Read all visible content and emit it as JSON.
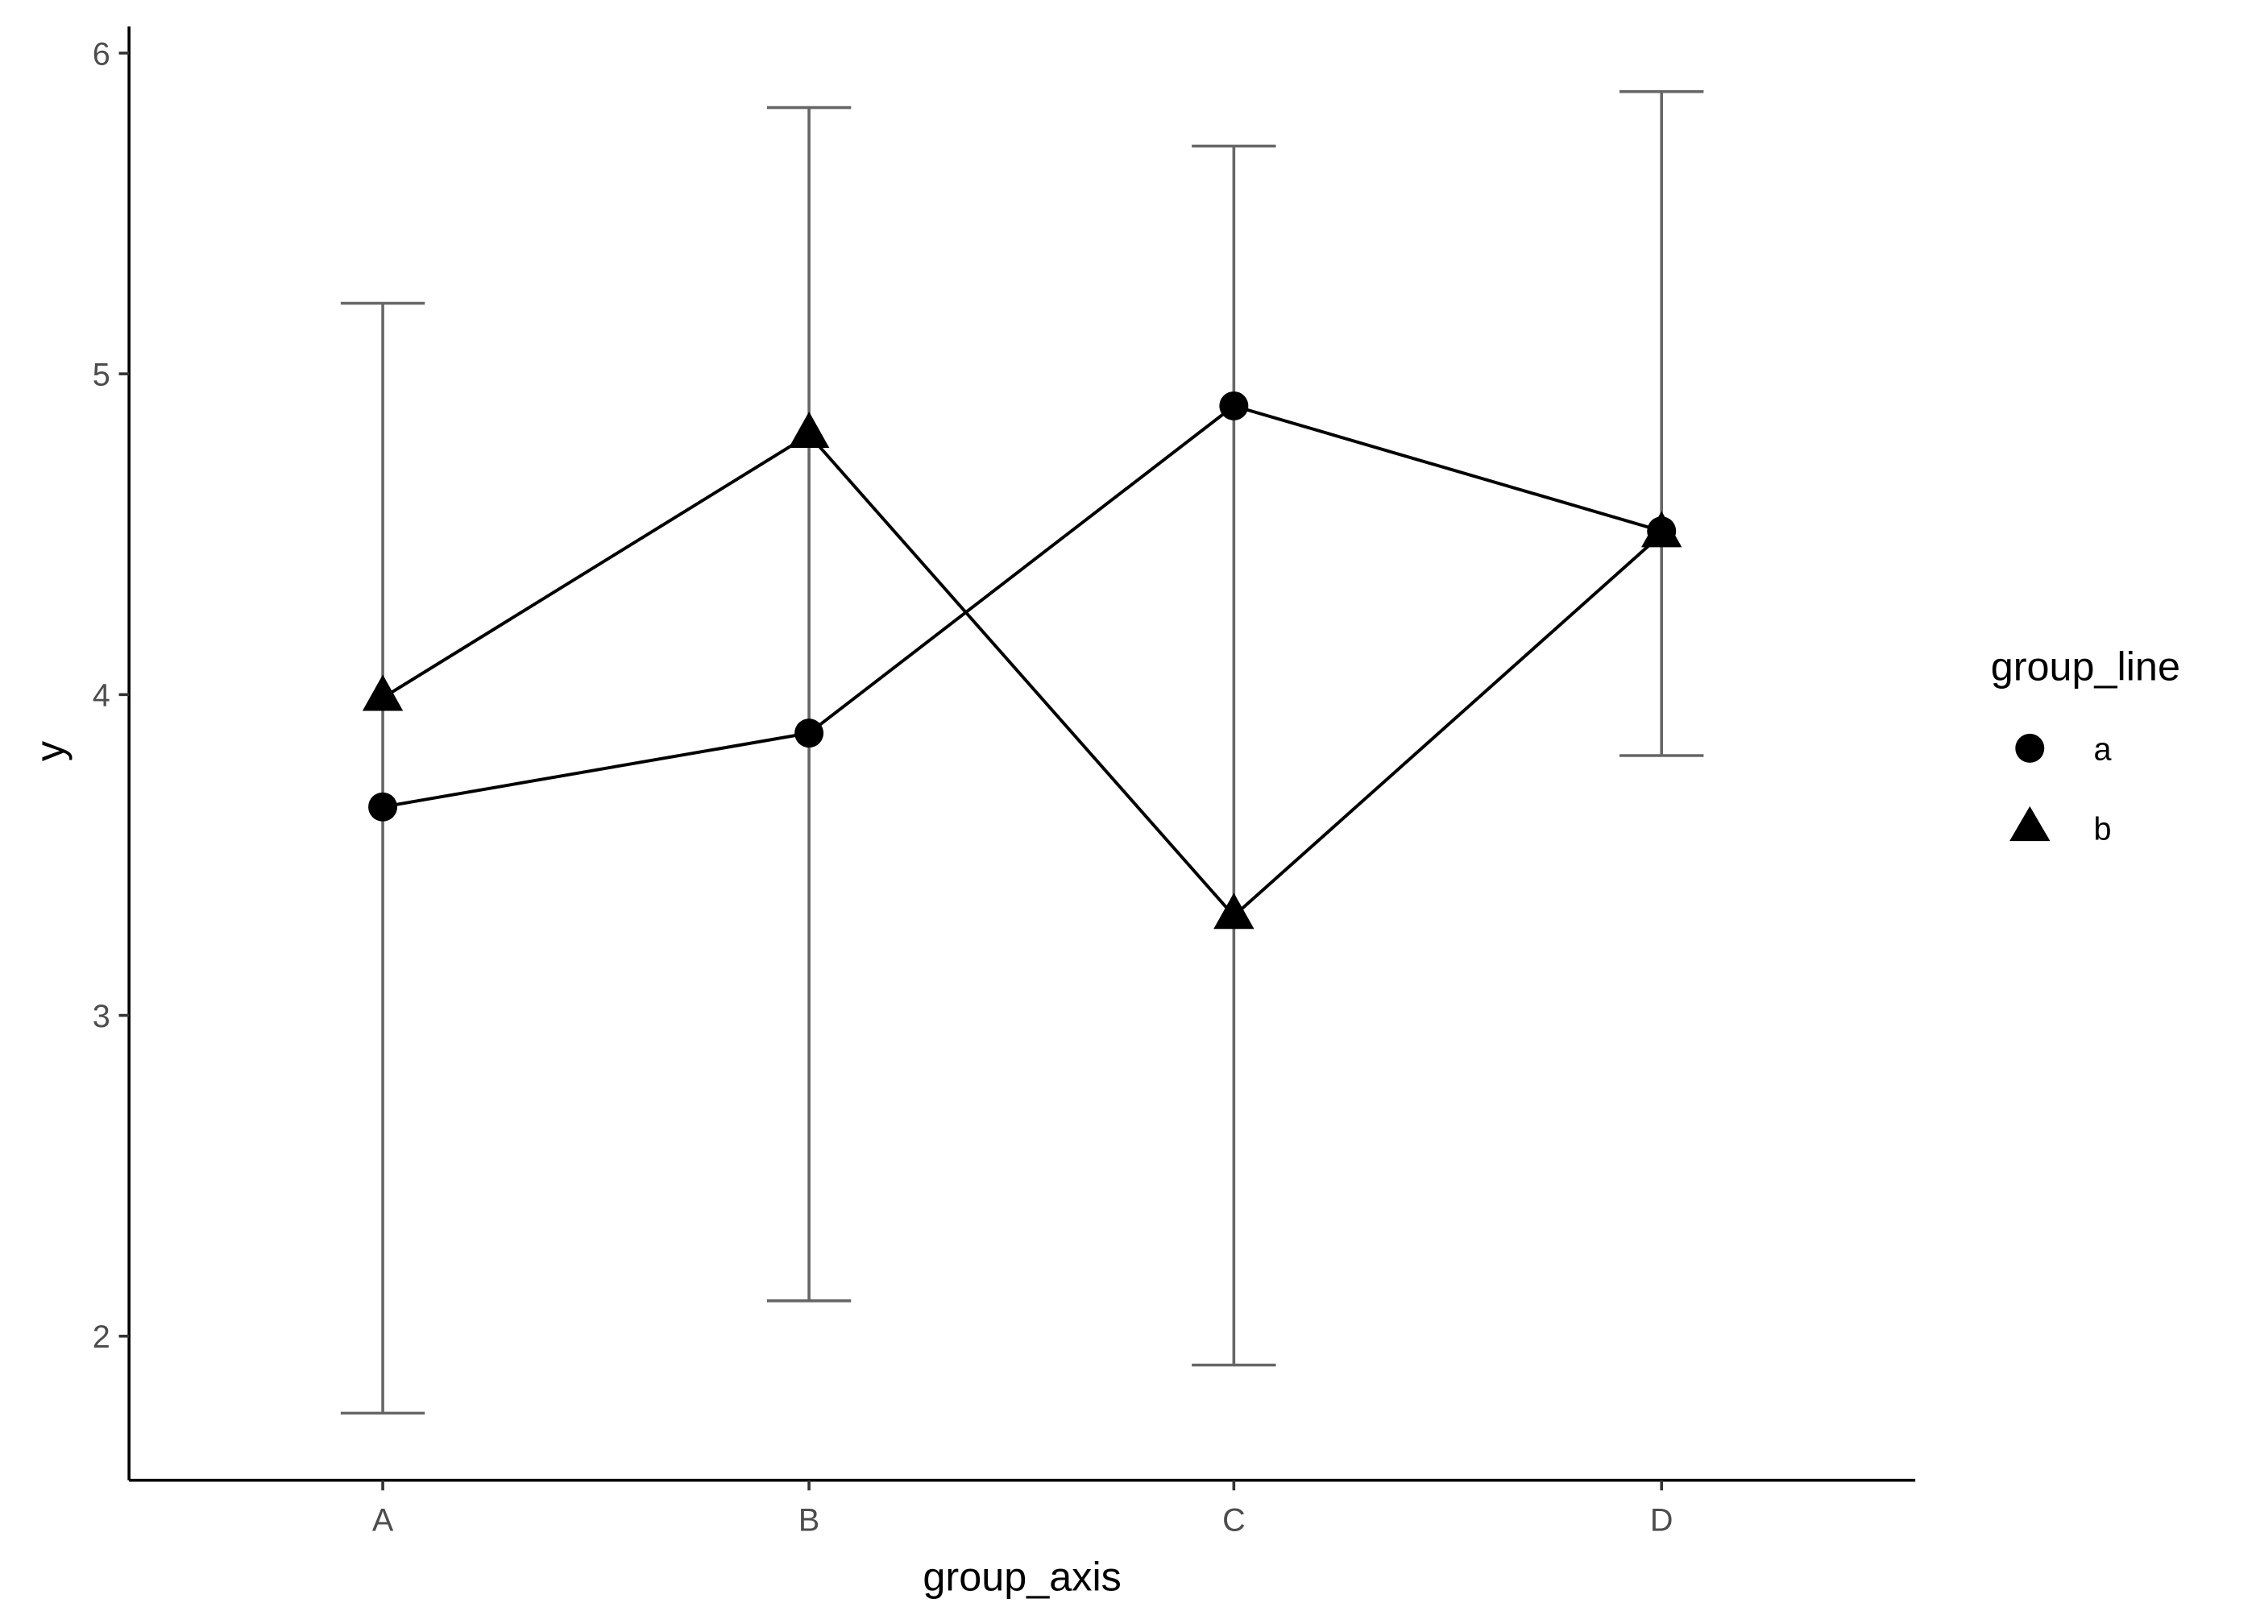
{
  "chart_data": {
    "type": "line",
    "xlabel": "group_axis",
    "ylabel": "y",
    "categories": [
      "A",
      "B",
      "C",
      "D"
    ],
    "ylim": [
      1.55,
      6.08
    ],
    "yticks": [
      2,
      3,
      4,
      5,
      6
    ],
    "grid": false,
    "legend": {
      "title": "group_line",
      "placement": "right"
    },
    "series": [
      {
        "name": "a",
        "shape": "circle",
        "values": [
          3.65,
          3.88,
          4.9,
          4.51
        ]
      },
      {
        "name": "b",
        "shape": "triangle",
        "values": [
          3.99,
          4.81,
          3.31,
          4.5
        ]
      }
    ],
    "error_bars": {
      "color": "#666666",
      "lower": [
        1.76,
        2.11,
        1.91,
        3.81
      ],
      "upper": [
        5.22,
        5.83,
        5.71,
        5.88
      ]
    },
    "line_color": "#000000"
  }
}
